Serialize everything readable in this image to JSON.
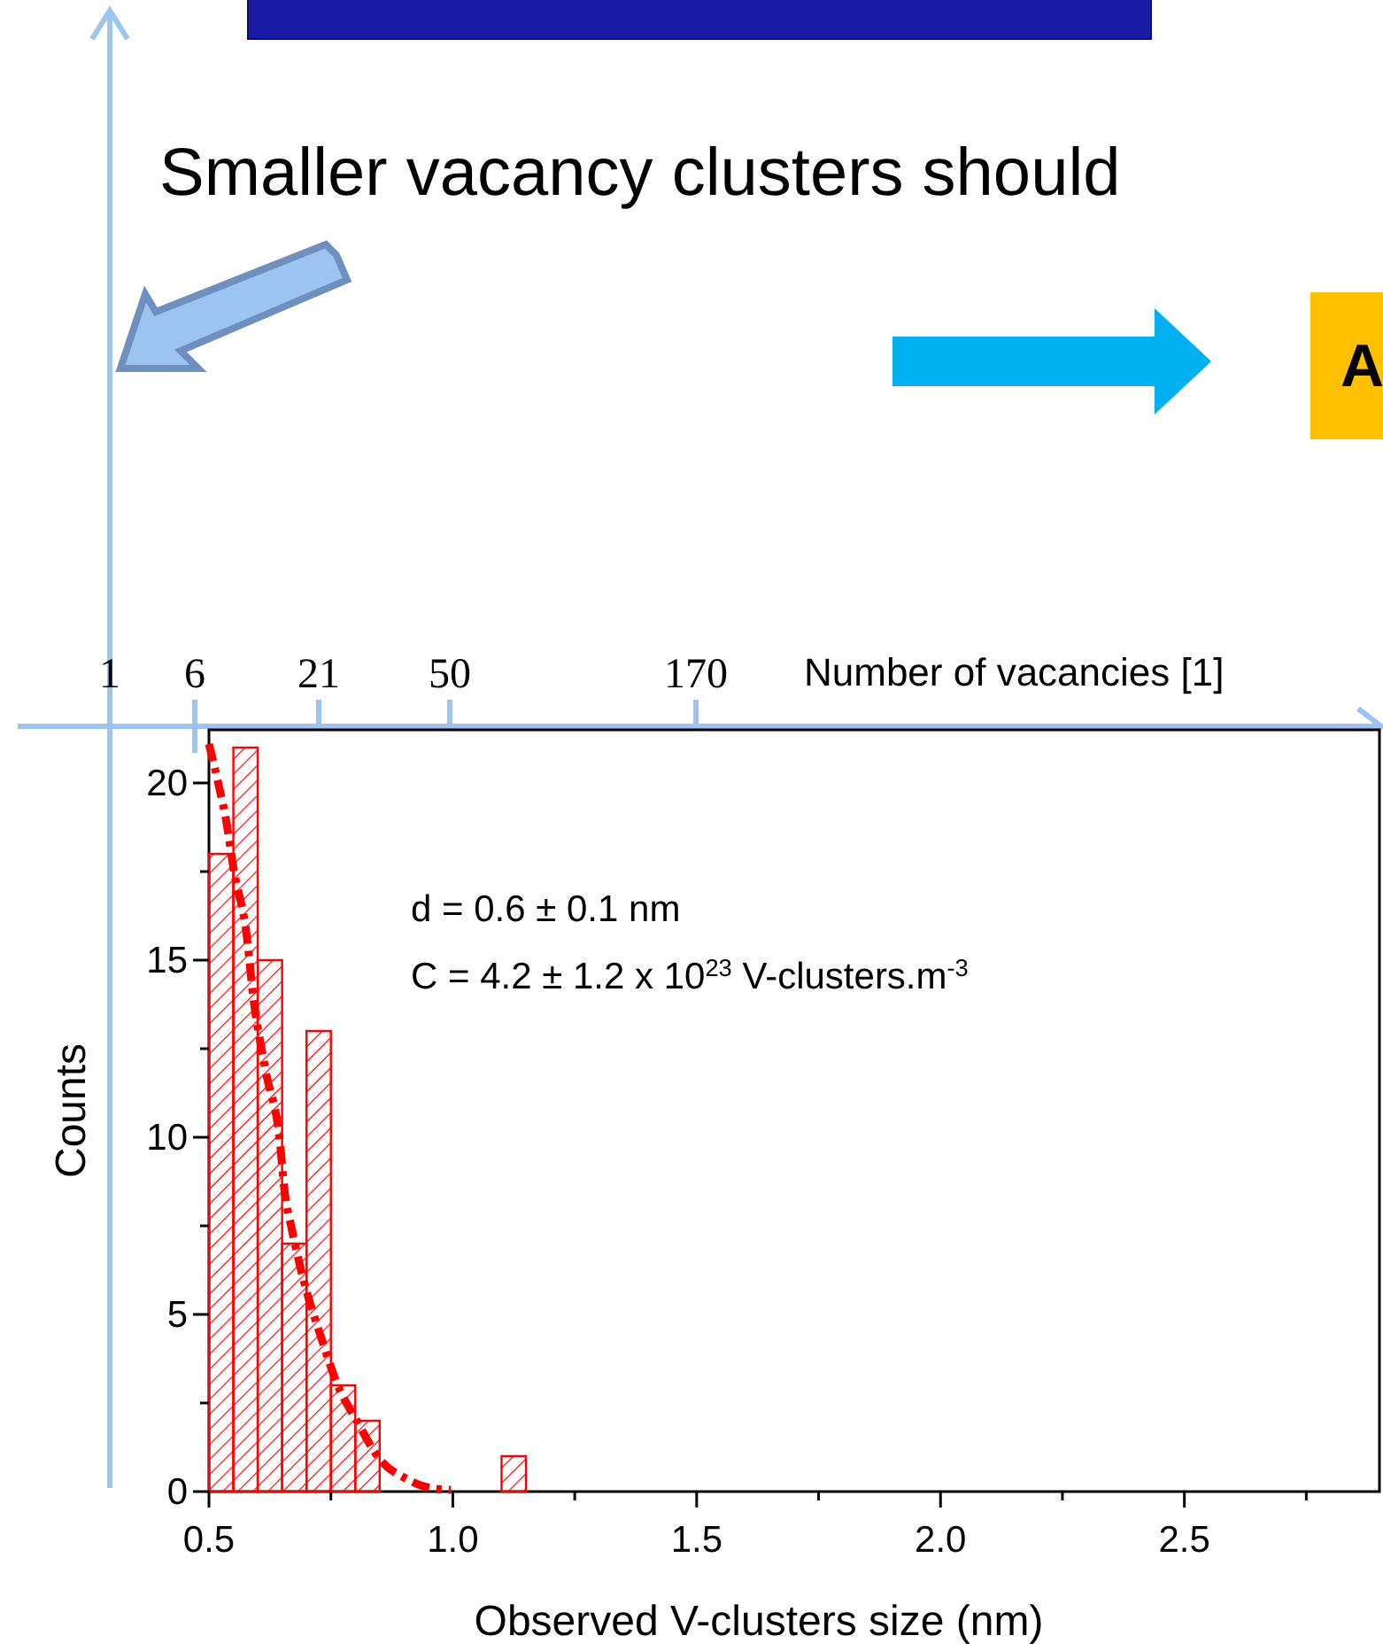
{
  "chart_data": {
    "type": "histogram",
    "xlabel": "Observed V-clusters size (nm)",
    "ylabel": "Counts",
    "x2label": "Number of vacancies [1]",
    "xlim": [
      0.5,
      2.9
    ],
    "ylim": [
      0,
      21.5
    ],
    "xticks": [
      0.5,
      {
        "value": 0.75,
        "label": null
      },
      "1.0",
      {
        "value": 1.25,
        "label": null
      },
      1.5,
      {
        "value": 1.75,
        "label": null
      },
      "2.0",
      {
        "value": 2.25,
        "label": null
      },
      2.5,
      {
        "value": 2.75,
        "label": null
      }
    ],
    "yticks": [
      0,
      {
        "value": 2.5,
        "label": null
      },
      5,
      {
        "value": 7.5,
        "label": null
      },
      10,
      {
        "value": 12.5,
        "label": null
      },
      15,
      {
        "value": 17.5,
        "label": null
      },
      20
    ],
    "grid": false,
    "series": [
      {
        "color": "#ff0000",
        "bins": [
          0.5,
          0.55,
          0.6,
          0.65,
          0.7,
          0.75,
          0.8,
          0.85,
          0.9,
          0.95,
          1.0,
          1.05,
          1.1,
          1.15
        ],
        "values": [
          18,
          21,
          15,
          7,
          13,
          3,
          2,
          0,
          0,
          0,
          0,
          0,
          1
        ]
      },
      {
        "type": "line",
        "color": "#ff0000",
        "line_style": "dashed",
        "marker": "none",
        "x": [
          0.5,
          0.519,
          0.537,
          0.549,
          0.58,
          0.588,
          0.616,
          0.646,
          0.654,
          0.67,
          0.688,
          0.736,
          0.761,
          0.803,
          0.851,
          0.906,
          0.954,
          0.996
        ],
        "values": [
          21.1,
          20.0,
          18.8,
          17.7,
          15.4,
          14.3,
          11.9,
          9.8,
          8.6,
          7.4,
          6.3,
          4.1,
          3.1,
          2.0,
          0.9,
          0.35,
          0.1,
          0.05
        ]
      }
    ],
    "annotations": [
      "d = 0.6 ± 0.1 nm",
      "C = 4.2 ± 1.2 x 10$^{23}$ V-clusters.m$^{-3}$",
      "Smaller vacancy clusters should",
      "A",
      "1",
      "6",
      "21",
      "50",
      "170"
    ]
  }
}
